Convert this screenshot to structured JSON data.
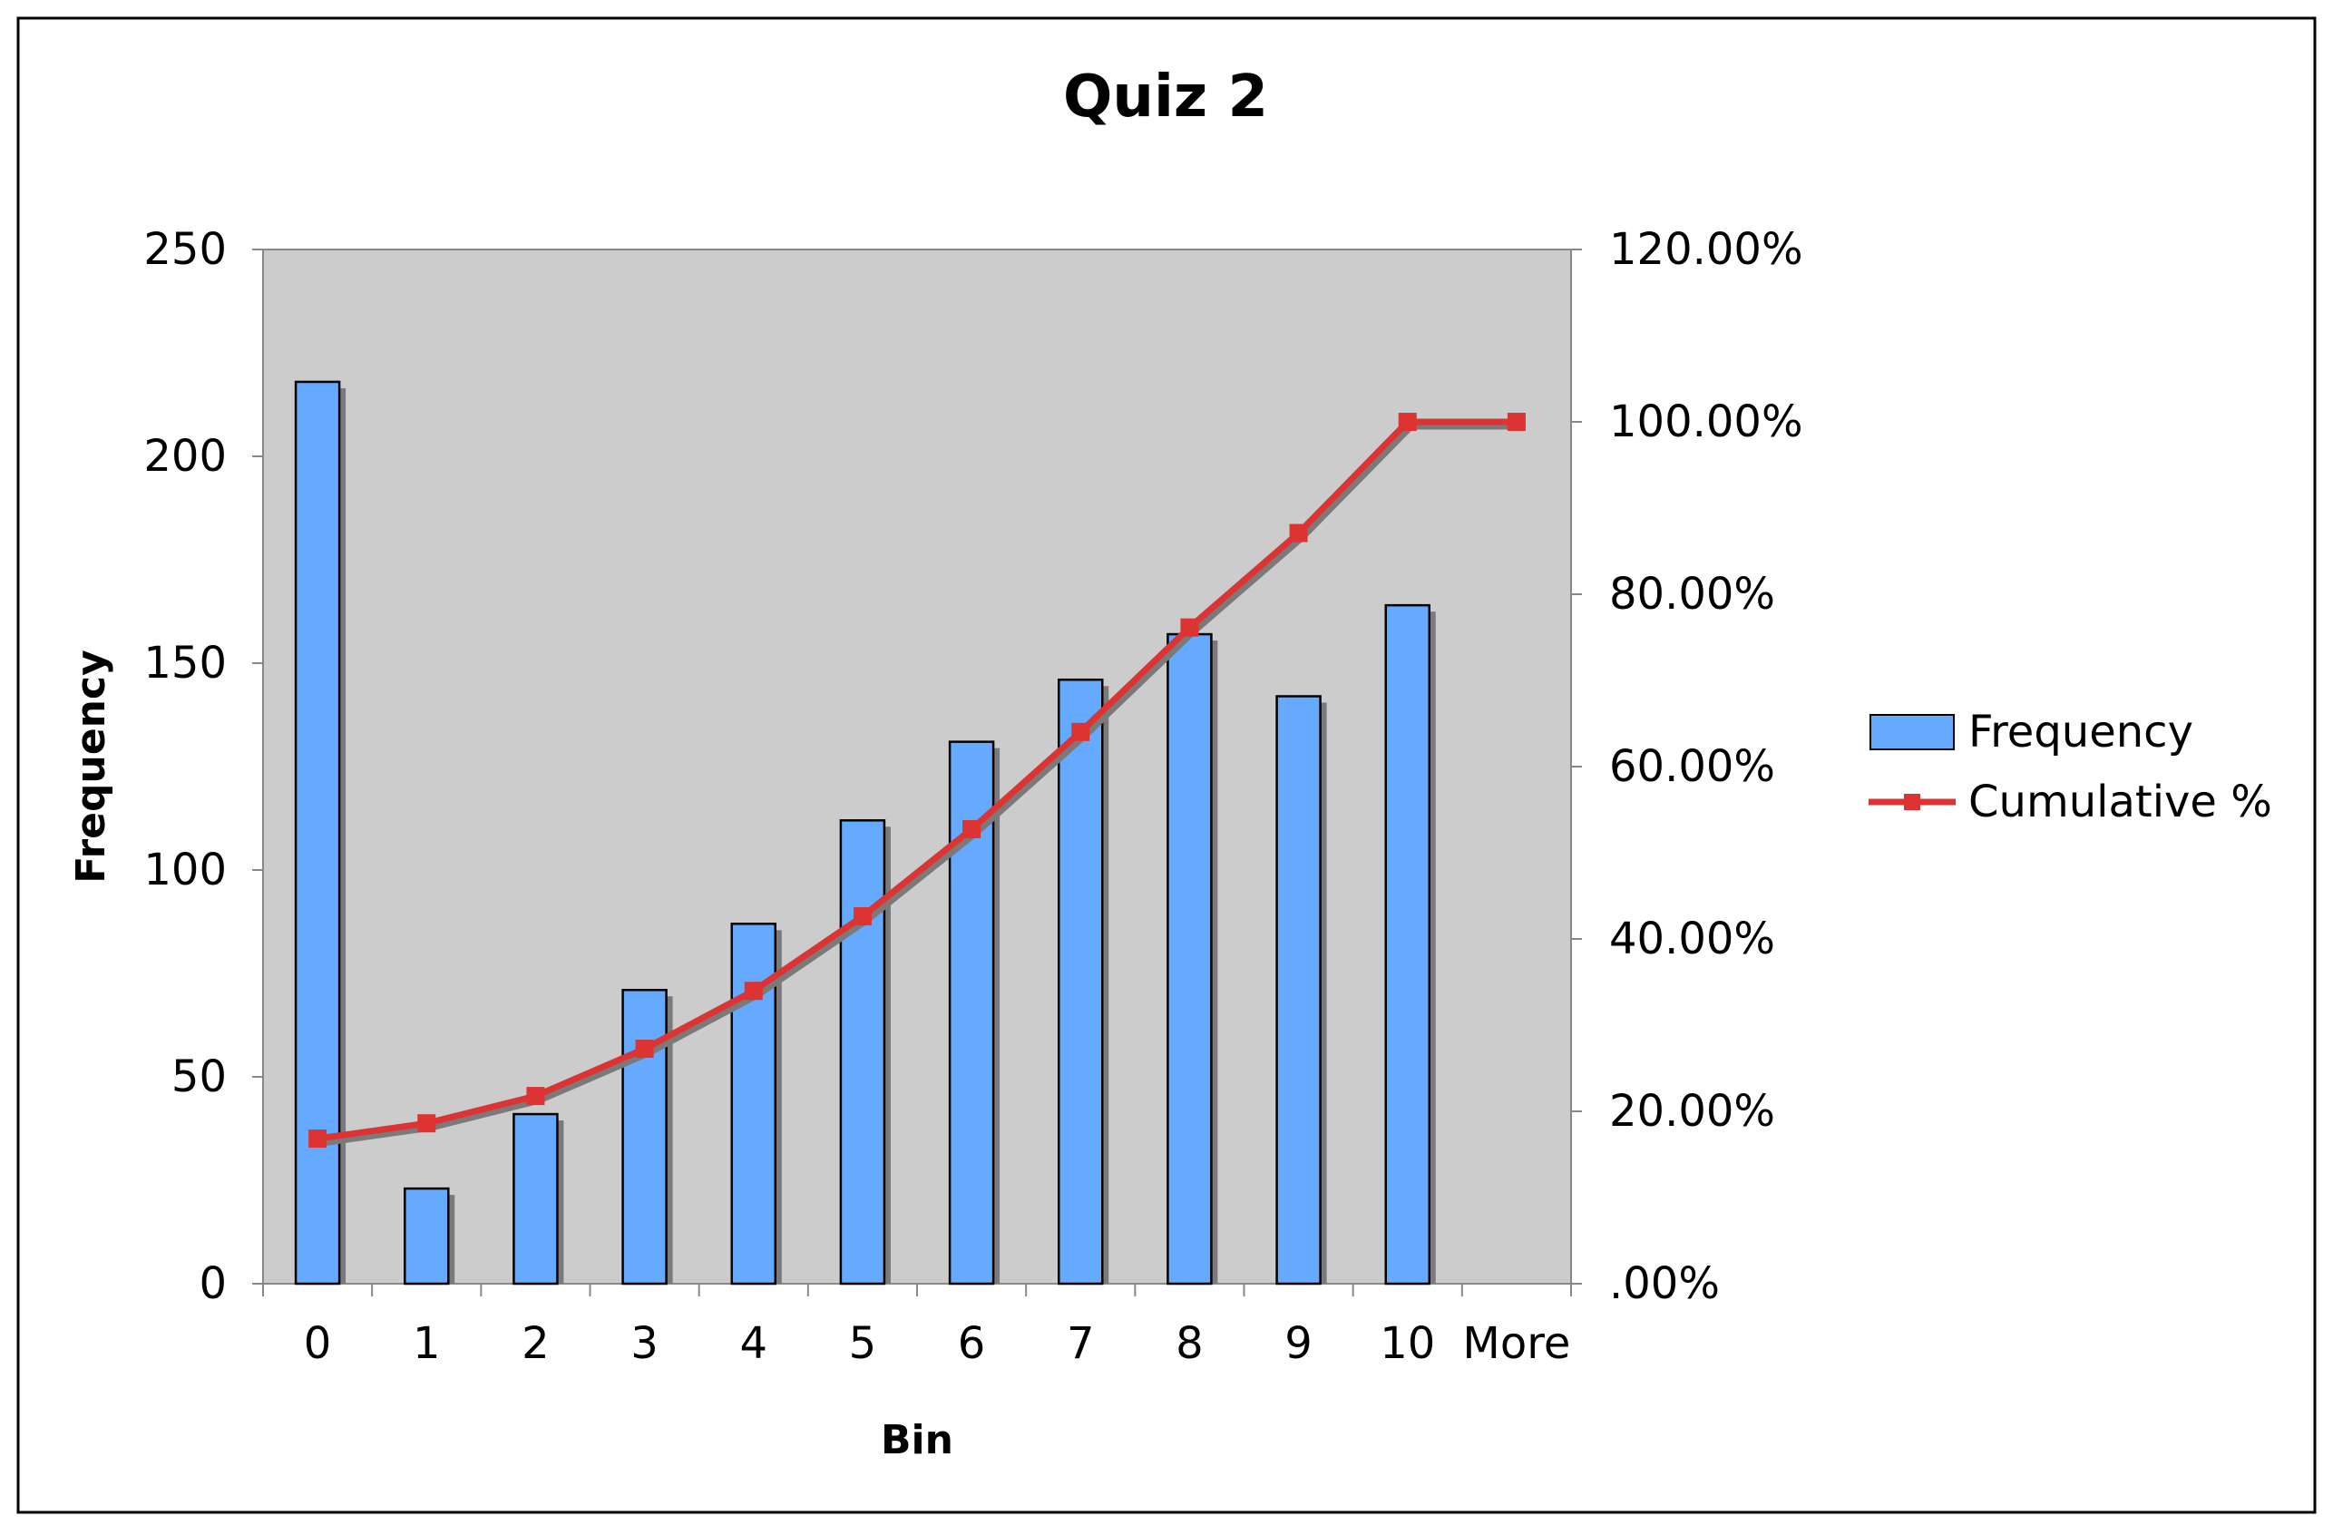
{
  "chart_data": {
    "type": "bar",
    "title": "Quiz 2",
    "xlabel": "Bin",
    "ylabel": "Frequency",
    "categories": [
      "0",
      "1",
      "2",
      "3",
      "4",
      "5",
      "6",
      "7",
      "8",
      "9",
      "10",
      "More"
    ],
    "ylim": [
      0,
      250
    ],
    "y2lim": [
      0,
      1.2
    ],
    "yticks": [
      "0",
      "50",
      "100",
      "150",
      "200",
      "250"
    ],
    "y2ticks": [
      ".00%",
      "20.00%",
      "40.00%",
      "60.00%",
      "80.00%",
      "100.00%",
      "120.00%"
    ],
    "grid": false,
    "legend_position": "right",
    "series": [
      {
        "name": "Frequency",
        "type": "bar",
        "axis": "left",
        "color": "#66aaff",
        "values": [
          218,
          23,
          41,
          71,
          87,
          112,
          131,
          146,
          157,
          142,
          164,
          0
        ]
      },
      {
        "name": "Cumulative %",
        "type": "line",
        "axis": "right",
        "color": "#dd3333",
        "values": [
          0.1683,
          0.1861,
          0.2178,
          0.2726,
          0.3398,
          0.4263,
          0.5274,
          0.6402,
          0.7614,
          0.871,
          1.0,
          1.0
        ]
      }
    ],
    "plot_background": "#cccccc"
  }
}
